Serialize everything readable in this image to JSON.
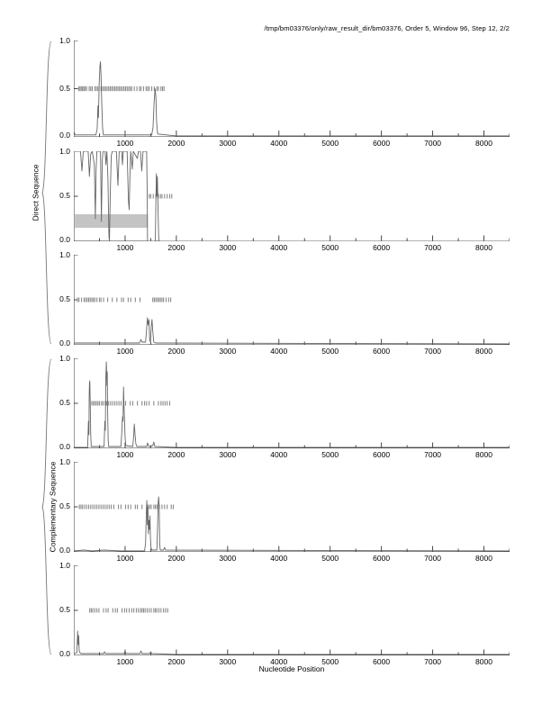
{
  "page": {
    "title": "/tmp/bm03376/only/raw_result_dir/bm03376, Order 5, Window 96, Step 12, 2/2"
  },
  "axes": {
    "xlabel": "Nucleotide Position",
    "xlim": [
      0,
      8500
    ],
    "x_major_ticks": [
      1000,
      2000,
      3000,
      4000,
      5000,
      6000,
      7000,
      8000
    ],
    "x_minor_step": 500,
    "ylim": [
      0,
      1
    ],
    "y_tick_labels": [
      "1.0",
      "0.5",
      "0.0"
    ]
  },
  "groups": [
    {
      "label": "Direct Sequence",
      "panels": [
        0,
        1,
        2
      ]
    },
    {
      "label": "Complementary Sequence",
      "panels": [
        3,
        4,
        5
      ]
    }
  ],
  "colors": {
    "curve": "#666666",
    "marker": "#8a8a8a",
    "axis": "#333333",
    "highlight": "#c4c4c4",
    "text": "#000000"
  },
  "chart_data": [
    {
      "type": "line",
      "group": "Direct Sequence",
      "markers_y": 0.5,
      "markers_x": [
        95,
        120,
        145,
        170,
        195,
        220,
        250,
        300,
        330,
        360,
        410,
        440,
        470,
        530,
        560,
        590,
        620,
        650,
        680,
        710,
        740,
        770,
        800,
        830,
        860,
        890,
        920,
        950,
        980,
        1010,
        1040,
        1070,
        1100,
        1130,
        1180,
        1230,
        1280,
        1310,
        1360,
        1410,
        1440,
        1470,
        1520,
        1570,
        1620,
        1650,
        1700,
        1730,
        1760
      ],
      "highlight_box": null,
      "curve": [
        [
          0,
          0.06
        ],
        [
          25,
          0.02
        ],
        [
          430,
          0.02
        ],
        [
          455,
          0.08
        ],
        [
          470,
          0.32
        ],
        [
          480,
          0.2
        ],
        [
          495,
          0.55
        ],
        [
          510,
          0.74
        ],
        [
          520,
          0.78
        ],
        [
          530,
          0.65
        ],
        [
          545,
          0.35
        ],
        [
          560,
          0.1
        ],
        [
          575,
          0.02
        ],
        [
          1520,
          0.02
        ],
        [
          1545,
          0.1
        ],
        [
          1565,
          0.35
        ],
        [
          1585,
          0.5
        ],
        [
          1600,
          0.42
        ],
        [
          1615,
          0.15
        ],
        [
          1635,
          0.03
        ],
        [
          2000,
          0.01
        ],
        [
          8500,
          0.01
        ]
      ]
    },
    {
      "type": "line",
      "group": "Direct Sequence",
      "markers_y": 0.5,
      "markers_x": [
        1470,
        1500,
        1550,
        1600,
        1650,
        1690,
        1720,
        1770,
        1820,
        1870,
        1910
      ],
      "highlight_box": {
        "x0": 20,
        "x1": 1445,
        "y0": 0.15,
        "y1": 0.3
      },
      "curve": [
        [
          0,
          1
        ],
        [
          130,
          1
        ],
        [
          158,
          0.78
        ],
        [
          185,
          1
        ],
        [
          280,
          1
        ],
        [
          304,
          0.72
        ],
        [
          330,
          0.97
        ],
        [
          360,
          1
        ],
        [
          400,
          0.85
        ],
        [
          420,
          0.25
        ],
        [
          435,
          0.8
        ],
        [
          450,
          1
        ],
        [
          520,
          1
        ],
        [
          538,
          0.22
        ],
        [
          555,
          0.9
        ],
        [
          570,
          1
        ],
        [
          610,
          1
        ],
        [
          626,
          0.85
        ],
        [
          645,
          1
        ],
        [
          665,
          0.7
        ],
        [
          685,
          0.05
        ],
        [
          695,
          0
        ],
        [
          710,
          0.5
        ],
        [
          730,
          0.95
        ],
        [
          750,
          1
        ],
        [
          830,
          1
        ],
        [
          860,
          0.62
        ],
        [
          885,
          1
        ],
        [
          935,
          1
        ],
        [
          948,
          0.85
        ],
        [
          965,
          1
        ],
        [
          1040,
          1
        ],
        [
          1065,
          0.45
        ],
        [
          1080,
          0.35
        ],
        [
          1095,
          0.75
        ],
        [
          1110,
          1
        ],
        [
          1140,
          0.8
        ],
        [
          1160,
          1
        ],
        [
          1240,
          0.92
        ],
        [
          1260,
          1
        ],
        [
          1300,
          1
        ],
        [
          1325,
          0.78
        ],
        [
          1350,
          1
        ],
        [
          1420,
          1
        ],
        [
          1432,
          0.5
        ],
        [
          1438,
          0
        ],
        [
          1590,
          0
        ],
        [
          1600,
          0.4
        ],
        [
          1610,
          0.75
        ],
        [
          1620,
          0.5
        ],
        [
          1630,
          0.72
        ],
        [
          1645,
          0.3
        ],
        [
          1655,
          0.05
        ],
        [
          1665,
          0
        ],
        [
          8500,
          0
        ]
      ]
    },
    {
      "type": "line",
      "group": "Direct Sequence",
      "markers_y": 0.5,
      "markers_x": [
        70,
        100,
        150,
        200,
        230,
        260,
        290,
        320,
        350,
        380,
        410,
        450,
        500,
        530,
        580,
        660,
        750,
        840,
        930,
        970,
        1060,
        1110,
        1200,
        1290,
        1540,
        1570,
        1600,
        1630,
        1660,
        1690,
        1720,
        1750,
        1800,
        1850,
        1890
      ],
      "highlight_box": null,
      "curve": [
        [
          0,
          0.02
        ],
        [
          1280,
          0.02
        ],
        [
          1310,
          0.06
        ],
        [
          1330,
          0.03
        ],
        [
          1400,
          0.03
        ],
        [
          1420,
          0.18
        ],
        [
          1435,
          0.3
        ],
        [
          1450,
          0.22
        ],
        [
          1465,
          0.28
        ],
        [
          1480,
          0.05
        ],
        [
          1495,
          0.03
        ],
        [
          1510,
          0.2
        ],
        [
          1525,
          0.28
        ],
        [
          1540,
          0.15
        ],
        [
          1560,
          0.03
        ],
        [
          1600,
          0.02
        ],
        [
          8500,
          0.01
        ]
      ]
    },
    {
      "type": "line",
      "group": "Complementary Sequence",
      "markers_y": 0.5,
      "markers_x": [
        350,
        380,
        410,
        440,
        470,
        500,
        540,
        570,
        610,
        640,
        680,
        720,
        760,
        800,
        840,
        880,
        920,
        1010,
        1100,
        1150,
        1240,
        1330,
        1380,
        1420,
        1470,
        1560,
        1650,
        1700,
        1740,
        1780,
        1820,
        1870
      ],
      "highlight_box": null,
      "curve": [
        [
          0,
          0.01
        ],
        [
          270,
          0.01
        ],
        [
          285,
          0.3
        ],
        [
          295,
          0.15
        ],
        [
          300,
          0.6
        ],
        [
          305,
          0.72
        ],
        [
          312,
          0.75
        ],
        [
          320,
          0.5
        ],
        [
          330,
          0.15
        ],
        [
          340,
          0.02
        ],
        [
          590,
          0.02
        ],
        [
          605,
          0.3
        ],
        [
          615,
          0.2
        ],
        [
          625,
          0.8
        ],
        [
          635,
          0.96
        ],
        [
          645,
          0.7
        ],
        [
          652,
          0.85
        ],
        [
          660,
          0.4
        ],
        [
          670,
          0.1
        ],
        [
          680,
          0.02
        ],
        [
          920,
          0.02
        ],
        [
          935,
          0.18
        ],
        [
          950,
          0.35
        ],
        [
          960,
          0.3
        ],
        [
          970,
          0.68
        ],
        [
          980,
          0.45
        ],
        [
          990,
          0.3
        ],
        [
          1000,
          0.12
        ],
        [
          1015,
          0.03
        ],
        [
          1150,
          0.02
        ],
        [
          1165,
          0.12
        ],
        [
          1180,
          0.27
        ],
        [
          1195,
          0.15
        ],
        [
          1210,
          0.05
        ],
        [
          1230,
          0.02
        ],
        [
          1420,
          0.02
        ],
        [
          1440,
          0.06
        ],
        [
          1460,
          0.02
        ],
        [
          1540,
          0.03
        ],
        [
          1560,
          0.07
        ],
        [
          1580,
          0.02
        ],
        [
          2000,
          0.01
        ],
        [
          8500,
          0.01
        ]
      ]
    },
    {
      "type": "line",
      "group": "Complementary Sequence",
      "markers_y": 0.5,
      "markers_x": [
        110,
        140,
        170,
        210,
        250,
        290,
        330,
        370,
        410,
        450,
        490,
        530,
        570,
        610,
        650,
        690,
        730,
        780,
        870,
        920,
        1010,
        1060,
        1110,
        1200,
        1240,
        1330,
        1420,
        1450,
        1480,
        1510,
        1560,
        1590,
        1620,
        1670,
        1720,
        1770,
        1820,
        1900,
        1940
      ],
      "highlight_box": null,
      "curve": [
        [
          0,
          0.01
        ],
        [
          200,
          0.02
        ],
        [
          350,
          0.01
        ],
        [
          600,
          0.02
        ],
        [
          900,
          0.01
        ],
        [
          1380,
          0.01
        ],
        [
          1400,
          0.1
        ],
        [
          1415,
          0.45
        ],
        [
          1425,
          0.57
        ],
        [
          1435,
          0.3
        ],
        [
          1445,
          0.5
        ],
        [
          1455,
          0.2
        ],
        [
          1465,
          0.35
        ],
        [
          1475,
          0.25
        ],
        [
          1485,
          0.4
        ],
        [
          1495,
          0.15
        ],
        [
          1505,
          0.05
        ],
        [
          1520,
          0.02
        ],
        [
          1620,
          0.02
        ],
        [
          1635,
          0.3
        ],
        [
          1645,
          0.55
        ],
        [
          1655,
          0.61
        ],
        [
          1665,
          0.5
        ],
        [
          1675,
          0.1
        ],
        [
          1685,
          0.02
        ],
        [
          1750,
          0.02
        ],
        [
          1770,
          0.05
        ],
        [
          1790,
          0.02
        ],
        [
          8500,
          0.01
        ]
      ]
    },
    {
      "type": "line",
      "group": "Complementary Sequence",
      "markers_y": 0.5,
      "markers_x": [
        310,
        340,
        370,
        410,
        450,
        490,
        580,
        630,
        670,
        760,
        810,
        850,
        940,
        990,
        1030,
        1080,
        1130,
        1170,
        1220,
        1260,
        1300,
        1330,
        1360,
        1390,
        1430,
        1470,
        1510,
        1560,
        1590,
        1620,
        1660,
        1700,
        1750,
        1790,
        1830
      ],
      "highlight_box": null,
      "curve": [
        [
          0,
          0.02
        ],
        [
          60,
          0.03
        ],
        [
          75,
          0.27
        ],
        [
          85,
          0.12
        ],
        [
          95,
          0.22
        ],
        [
          105,
          0.05
        ],
        [
          120,
          0.03
        ],
        [
          140,
          0.02
        ],
        [
          580,
          0.02
        ],
        [
          600,
          0.04
        ],
        [
          620,
          0.02
        ],
        [
          980,
          0.02
        ],
        [
          1000,
          0.05
        ],
        [
          1020,
          0.02
        ],
        [
          1290,
          0.02
        ],
        [
          1310,
          0.05
        ],
        [
          1330,
          0.02
        ],
        [
          1480,
          0.02
        ],
        [
          1500,
          0.04
        ],
        [
          1520,
          0.02
        ],
        [
          2000,
          0.01
        ],
        [
          8500,
          0.01
        ]
      ]
    }
  ]
}
